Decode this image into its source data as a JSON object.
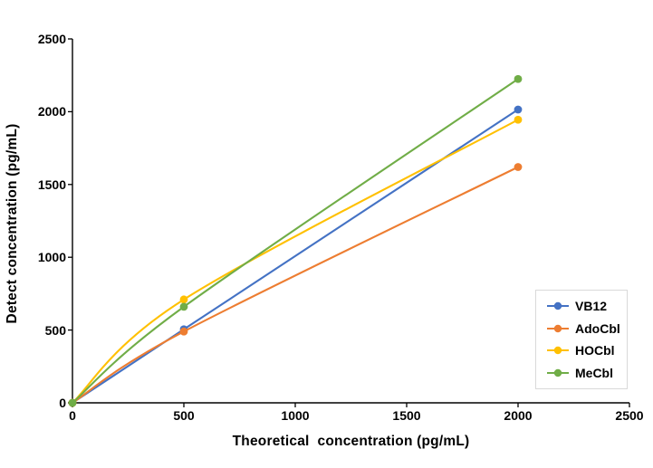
{
  "chart_data": {
    "type": "line",
    "title": "",
    "xlabel": "Theoretical  concentration (pg/mL)",
    "ylabel": "Detect concentration (pg/mL)",
    "xlim": [
      0,
      2500
    ],
    "ylim": [
      0,
      2500
    ],
    "x_ticks": [
      "0",
      "500",
      "1000",
      "1500",
      "2000",
      "2500"
    ],
    "y_ticks": [
      "0",
      "500",
      "1000",
      "1500",
      "2000",
      "2500"
    ],
    "grid": false,
    "line_style": "smooth",
    "marker": "circle",
    "legend_position": "right-inside",
    "axis_color": "#000000",
    "legend_border_color": "#d9d9d9",
    "x": [
      0,
      500,
      2000
    ],
    "series": [
      {
        "name": "VB12",
        "color": "#4472C4",
        "values": [
          0,
          505,
          2015
        ]
      },
      {
        "name": "AdoCbl",
        "color": "#ED7D31",
        "values": [
          0,
          490,
          1620
        ]
      },
      {
        "name": "HOCbl",
        "color": "#FFC000",
        "values": [
          0,
          710,
          1945
        ]
      },
      {
        "name": "MeCbl",
        "color": "#70AD47",
        "values": [
          0,
          660,
          2225
        ]
      }
    ]
  }
}
